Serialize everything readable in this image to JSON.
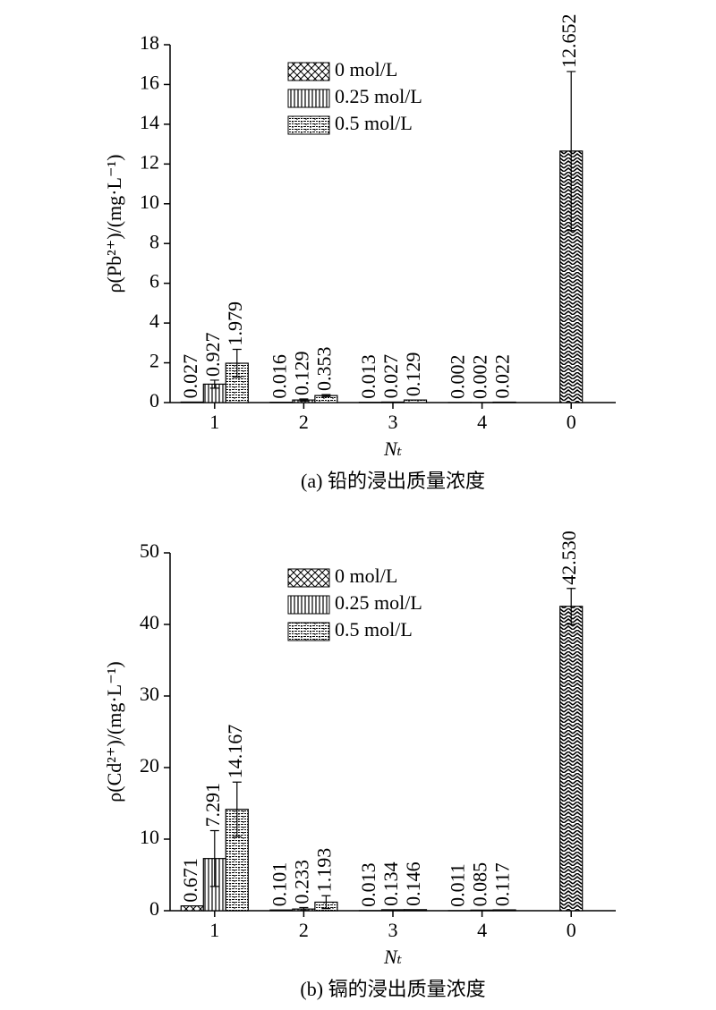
{
  "chart_data": [
    {
      "type": "bar",
      "y_label": "ρ(Pb²⁺)/(mg·L⁻¹)",
      "x_label": "Nₜ",
      "caption": "(a) 铅的浸出质量浓度",
      "categories": [
        "1",
        "2",
        "3",
        "4",
        "0"
      ],
      "ylim": [
        0,
        18
      ],
      "yticks": [
        0,
        2,
        4,
        6,
        8,
        10,
        12,
        14,
        16,
        18
      ],
      "series": [
        {
          "name": "0 mol/L",
          "color": "#000000",
          "pattern": "crosshatch",
          "values": [
            0.027,
            0.016,
            0.013,
            0.002,
            null
          ]
        },
        {
          "name": "0.25 mol/L",
          "color": "#000000",
          "pattern": "vertical",
          "values": [
            0.927,
            0.129,
            0.027,
            0.002,
            null
          ],
          "errors": [
            0.2,
            0.05,
            null,
            null,
            null
          ]
        },
        {
          "name": "0.5 mol/L",
          "color": "#000000",
          "pattern": "brick",
          "values": [
            1.979,
            0.353,
            0.129,
            0.022,
            null
          ],
          "errors": [
            0.7,
            0.05,
            null,
            null,
            null
          ]
        },
        {
          "color": "#000000",
          "pattern": "zigzag",
          "values": [
            null,
            null,
            null,
            null,
            12.652
          ],
          "errors": [
            null,
            null,
            null,
            null,
            4.0
          ]
        }
      ]
    },
    {
      "type": "bar",
      "y_label": "ρ(Cd²⁺)/(mg·L⁻¹)",
      "x_label": "Nₜ",
      "caption": "(b) 镉的浸出质量浓度",
      "categories": [
        "1",
        "2",
        "3",
        "4",
        "0"
      ],
      "ylim": [
        0,
        50
      ],
      "yticks": [
        0,
        10,
        20,
        30,
        40,
        50
      ],
      "series": [
        {
          "name": "0 mol/L",
          "color": "#000000",
          "pattern": "crosshatch",
          "values": [
            0.671,
            0.101,
            0.013,
            0.011,
            null
          ]
        },
        {
          "name": "0.25 mol/L",
          "color": "#000000",
          "pattern": "vertical",
          "values": [
            7.291,
            0.233,
            0.134,
            0.085,
            null
          ],
          "errors": [
            3.9,
            0.2,
            null,
            null,
            null
          ]
        },
        {
          "name": "0.5 mol/L",
          "color": "#000000",
          "pattern": "brick",
          "values": [
            14.167,
            1.193,
            0.146,
            0.117,
            null
          ],
          "errors": [
            3.8,
            0.9,
            null,
            null,
            null
          ]
        },
        {
          "color": "#000000",
          "pattern": "zigzag",
          "values": [
            null,
            null,
            null,
            null,
            42.53
          ],
          "value_labels": [
            null,
            null,
            null,
            null,
            "42.530"
          ],
          "errors": [
            null,
            null,
            null,
            null,
            2.5
          ]
        }
      ]
    }
  ]
}
